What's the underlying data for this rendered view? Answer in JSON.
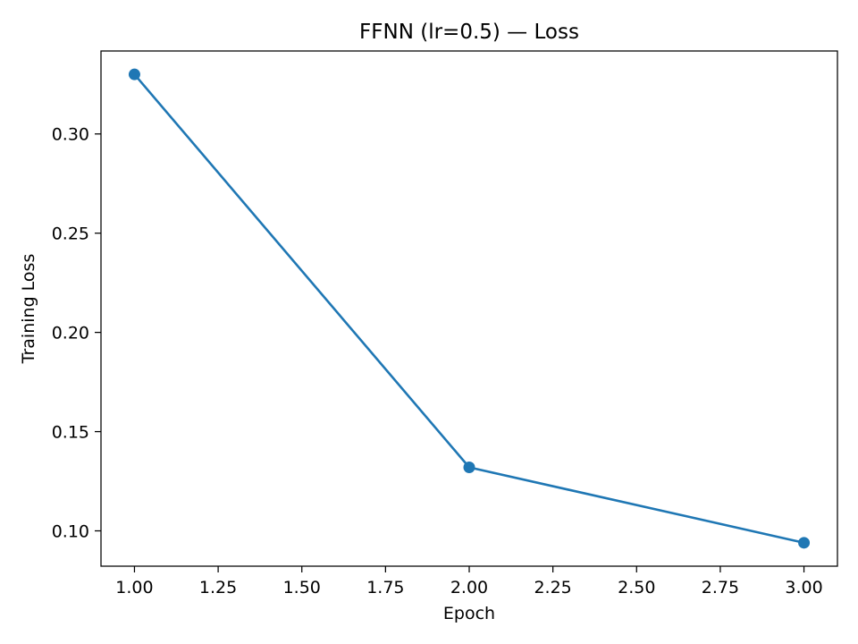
{
  "chart_data": {
    "type": "line",
    "title": "FFNN (lr=0.5) — Loss",
    "xlabel": "Epoch",
    "ylabel": "Training Loss",
    "x": [
      1,
      2,
      3
    ],
    "series": [
      {
        "values": [
          0.33,
          0.132,
          0.094
        ],
        "color": "#1f77b4",
        "marker": "circle"
      }
    ],
    "xlim": [
      0.9,
      3.1
    ],
    "ylim": [
      0.0822,
      0.3418
    ],
    "xticks": [
      "1.00",
      "1.25",
      "1.50",
      "1.75",
      "2.00",
      "2.25",
      "2.50",
      "2.75",
      "3.00"
    ],
    "yticks": [
      "0.10",
      "0.15",
      "0.20",
      "0.25",
      "0.30"
    ],
    "grid": false,
    "legend": "none"
  }
}
